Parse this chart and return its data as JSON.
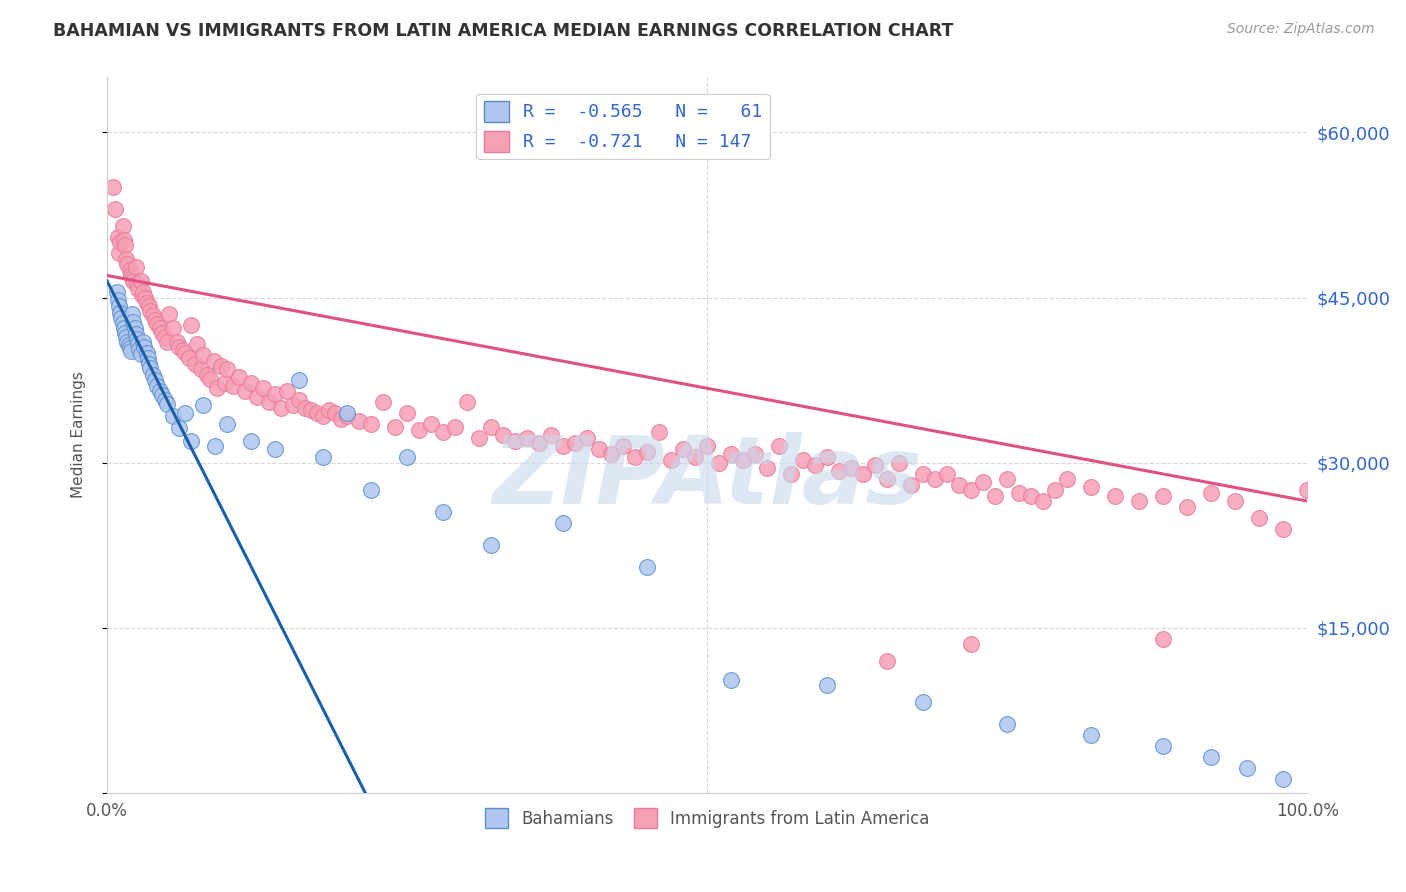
{
  "title": "BAHAMIAN VS IMMIGRANTS FROM LATIN AMERICA MEDIAN EARNINGS CORRELATION CHART",
  "source": "Source: ZipAtlas.com",
  "ylabel": "Median Earnings",
  "xlim": [
    0.0,
    1.0
  ],
  "ylim": [
    0,
    65000
  ],
  "yticks": [
    0,
    15000,
    30000,
    45000,
    60000
  ],
  "ytick_labels": [
    "",
    "$15,000",
    "$30,000",
    "$45,000",
    "$60,000"
  ],
  "xtick_labels": [
    "0.0%",
    "100.0%"
  ],
  "legend_line1": "R =  -0.565   N =   61",
  "legend_line2": "R =  -0.721   N = 147",
  "bottom_legend": [
    "Bahamians",
    "Immigrants from Latin America"
  ],
  "blue_scatter_x": [
    0.008,
    0.009,
    0.01,
    0.011,
    0.012,
    0.013,
    0.014,
    0.015,
    0.016,
    0.017,
    0.018,
    0.019,
    0.02,
    0.021,
    0.022,
    0.023,
    0.024,
    0.025,
    0.026,
    0.027,
    0.028,
    0.03,
    0.031,
    0.033,
    0.034,
    0.035,
    0.036,
    0.038,
    0.04,
    0.042,
    0.044,
    0.046,
    0.048,
    0.05,
    0.055,
    0.06,
    0.065,
    0.07,
    0.08,
    0.09,
    0.1,
    0.12,
    0.14,
    0.16,
    0.18,
    0.2,
    0.22,
    0.25,
    0.28,
    0.32,
    0.38,
    0.45,
    0.52,
    0.6,
    0.68,
    0.75,
    0.82,
    0.88,
    0.92,
    0.95,
    0.98
  ],
  "blue_scatter_y": [
    45500,
    44800,
    44200,
    43600,
    43100,
    42700,
    42200,
    41800,
    41400,
    41000,
    40700,
    40400,
    40100,
    43500,
    42800,
    42200,
    41700,
    41200,
    40800,
    40300,
    39900,
    41000,
    40500,
    40000,
    39500,
    39000,
    38600,
    38000,
    37500,
    37000,
    36500,
    36100,
    35700,
    35300,
    34200,
    33100,
    34500,
    32000,
    35200,
    31500,
    33500,
    32000,
    31200,
    37500,
    30500,
    34500,
    27500,
    30500,
    25500,
    22500,
    24500,
    20500,
    10200,
    9800,
    8200,
    6200,
    5200,
    4200,
    3200,
    2200,
    1200
  ],
  "pink_scatter_x": [
    0.005,
    0.007,
    0.009,
    0.01,
    0.011,
    0.013,
    0.014,
    0.015,
    0.016,
    0.017,
    0.019,
    0.02,
    0.021,
    0.022,
    0.024,
    0.025,
    0.026,
    0.028,
    0.029,
    0.03,
    0.032,
    0.033,
    0.035,
    0.036,
    0.038,
    0.04,
    0.042,
    0.044,
    0.046,
    0.048,
    0.05,
    0.052,
    0.055,
    0.058,
    0.06,
    0.063,
    0.065,
    0.068,
    0.07,
    0.073,
    0.075,
    0.078,
    0.08,
    0.083,
    0.086,
    0.089,
    0.092,
    0.095,
    0.098,
    0.1,
    0.105,
    0.11,
    0.115,
    0.12,
    0.125,
    0.13,
    0.135,
    0.14,
    0.145,
    0.15,
    0.155,
    0.16,
    0.165,
    0.17,
    0.175,
    0.18,
    0.185,
    0.19,
    0.195,
    0.2,
    0.21,
    0.22,
    0.23,
    0.24,
    0.25,
    0.26,
    0.27,
    0.28,
    0.29,
    0.3,
    0.31,
    0.32,
    0.33,
    0.34,
    0.35,
    0.36,
    0.37,
    0.38,
    0.39,
    0.4,
    0.41,
    0.42,
    0.43,
    0.44,
    0.45,
    0.46,
    0.47,
    0.48,
    0.49,
    0.5,
    0.51,
    0.52,
    0.53,
    0.54,
    0.55,
    0.56,
    0.57,
    0.58,
    0.59,
    0.6,
    0.61,
    0.62,
    0.63,
    0.64,
    0.65,
    0.66,
    0.67,
    0.68,
    0.69,
    0.7,
    0.71,
    0.72,
    0.73,
    0.74,
    0.75,
    0.76,
    0.77,
    0.78,
    0.79,
    0.8,
    0.82,
    0.84,
    0.86,
    0.88,
    0.9,
    0.92,
    0.94,
    0.96,
    0.98,
    1.0,
    0.72,
    0.88,
    0.65
  ],
  "pink_scatter_y": [
    55000,
    53000,
    50500,
    49000,
    50000,
    51500,
    50200,
    49800,
    48500,
    48000,
    47500,
    47000,
    46800,
    46500,
    47800,
    46200,
    45800,
    46500,
    45200,
    45500,
    45000,
    44500,
    44200,
    43800,
    43400,
    43000,
    42600,
    42200,
    41800,
    41400,
    41000,
    43500,
    42200,
    41000,
    40500,
    40200,
    40000,
    39500,
    42500,
    39000,
    40800,
    38500,
    39800,
    38000,
    37600,
    39200,
    36800,
    38800,
    37200,
    38500,
    37000,
    37800,
    36500,
    37200,
    36000,
    36800,
    35500,
    36200,
    35000,
    36500,
    35200,
    35700,
    35000,
    34800,
    34500,
    34200,
    34800,
    34500,
    34000,
    34200,
    33800,
    33500,
    35500,
    33200,
    34500,
    33000,
    33500,
    32800,
    33200,
    35500,
    32200,
    33200,
    32500,
    32000,
    32200,
    31800,
    32500,
    31500,
    31800,
    32200,
    31200,
    30800,
    31500,
    30500,
    31000,
    32800,
    30200,
    31200,
    30500,
    31500,
    30000,
    30800,
    30200,
    30800,
    29500,
    31500,
    29000,
    30200,
    29800,
    30500,
    29200,
    29500,
    29000,
    29800,
    28500,
    30000,
    28000,
    29000,
    28500,
    29000,
    28000,
    27500,
    28200,
    27000,
    28500,
    27200,
    27000,
    26500,
    27500,
    28500,
    27800,
    27000,
    26500,
    27000,
    26000,
    27200,
    26500,
    25000,
    24000,
    27500,
    13500,
    14000,
    12000
  ],
  "blue_line_x": [
    0.0,
    0.215
  ],
  "blue_line_y": [
    46500,
    0
  ],
  "pink_line_x": [
    0.0,
    1.0
  ],
  "pink_line_y": [
    47000,
    26500
  ],
  "blue_scatter_color": "#aec6f0",
  "blue_edge_color": "#5b8fc9",
  "pink_scatter_color": "#f5a0b5",
  "pink_edge_color": "#e87a9a",
  "blue_line_color": "#1a5fa8",
  "pink_line_color": "#e05080",
  "watermark_color": "#c8d8ee",
  "background_color": "#ffffff",
  "grid_color": "#d8d8d8",
  "title_color": "#333333",
  "source_color": "#999999",
  "ylabel_color": "#555555",
  "right_tick_color": "#3366cc",
  "bottom_label_color": "#555555"
}
